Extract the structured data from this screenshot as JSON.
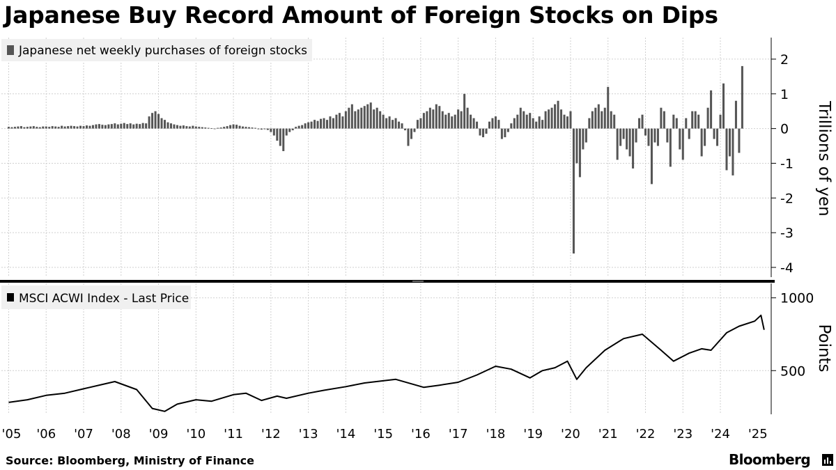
{
  "title": "Japanese Buy Record Amount of Foreign Stocks on Dips",
  "source": "Source: Bloomberg, Ministry of Finance",
  "brand": "Bloomberg",
  "chart_data": [
    {
      "type": "bar",
      "legend": "Japanese net weekly purchases of foreign stocks",
      "ylabel": "Trillions of yen",
      "ylim": [
        -4.2,
        2.5
      ],
      "yticks": [
        "2",
        "1",
        "0",
        "-1",
        "-2",
        "-3",
        "-4"
      ],
      "color": "#555555",
      "x_range": [
        "2004-12",
        "2025-03"
      ],
      "notable_points": [
        {
          "date": "2020-03",
          "value": -3.6
        },
        {
          "date": "2025-03",
          "value": 1.8
        },
        {
          "date": "2021-01",
          "value": 1.2
        },
        {
          "date": "2024-08",
          "value": 1.3
        },
        {
          "date": "2022-07",
          "value": -1.6
        },
        {
          "date": "2024-10",
          "value": -1.35
        }
      ],
      "monthly_net_purchases": [
        0.05,
        0.04,
        0.05,
        0.06,
        0.07,
        0.04,
        0.05,
        0.06,
        0.07,
        0.05,
        0.04,
        0.06,
        0.06,
        0.05,
        0.07,
        0.06,
        0.05,
        0.08,
        0.06,
        0.07,
        0.08,
        0.07,
        0.06,
        0.08,
        0.07,
        0.09,
        0.08,
        0.1,
        0.12,
        0.13,
        0.11,
        0.1,
        0.12,
        0.13,
        0.15,
        0.12,
        0.14,
        0.16,
        0.13,
        0.15,
        0.12,
        0.14,
        0.13,
        0.16,
        0.15,
        0.35,
        0.45,
        0.5,
        0.42,
        0.3,
        0.25,
        0.18,
        0.15,
        0.12,
        0.1,
        0.08,
        0.09,
        0.07,
        0.06,
        0.08,
        0.06,
        0.05,
        0.04,
        0.03,
        0.02,
        0.01,
        -0.01,
        0.02,
        0.03,
        0.05,
        0.07,
        0.1,
        0.12,
        0.11,
        0.08,
        0.06,
        0.05,
        0.04,
        0.03,
        0.02,
        -0.02,
        -0.03,
        -0.02,
        -0.04,
        -0.1,
        -0.2,
        -0.35,
        -0.5,
        -0.65,
        -0.2,
        -0.1,
        -0.05,
        0.05,
        0.08,
        0.1,
        0.15,
        0.18,
        0.2,
        0.25,
        0.22,
        0.28,
        0.3,
        0.25,
        0.35,
        0.3,
        0.4,
        0.45,
        0.35,
        0.5,
        0.6,
        0.7,
        0.5,
        0.55,
        0.6,
        0.65,
        0.7,
        0.75,
        0.55,
        0.6,
        0.5,
        0.4,
        0.3,
        0.35,
        0.25,
        0.3,
        0.2,
        0.15,
        -0.05,
        -0.5,
        -0.3,
        -0.1,
        0.25,
        0.3,
        0.45,
        0.5,
        0.6,
        0.55,
        0.7,
        0.65,
        0.5,
        0.4,
        0.45,
        0.35,
        0.4,
        0.55,
        0.5,
        1.0,
        0.6,
        0.4,
        0.3,
        0.2,
        -0.2,
        -0.25,
        -0.15,
        0.2,
        0.3,
        0.35,
        0.25,
        -0.3,
        -0.25,
        -0.1,
        0.15,
        0.3,
        0.4,
        0.6,
        0.5,
        0.4,
        0.45,
        0.3,
        0.2,
        0.35,
        0.25,
        0.5,
        0.55,
        0.6,
        0.7,
        0.8,
        0.55,
        0.4,
        0.35,
        0.5,
        -3.6,
        -1.0,
        -1.4,
        -0.6,
        -0.4,
        0.3,
        0.5,
        0.6,
        0.7,
        0.5,
        0.6,
        1.2,
        0.5,
        0.4,
        -0.9,
        -0.5,
        -0.3,
        -0.6,
        -0.8,
        -1.15,
        -0.4,
        0.3,
        0.4,
        -0.2,
        -0.5,
        -1.6,
        -0.4,
        -0.5,
        0.6,
        0.5,
        -0.4,
        -1.1,
        0.4,
        0.3,
        -0.6,
        -0.9,
        0.3,
        -0.3,
        0.5,
        0.5,
        0.4,
        -0.8,
        -0.5,
        0.6,
        1.1,
        -0.3,
        -0.5,
        0.4,
        1.3,
        -1.2,
        -0.8,
        -1.35,
        0.8,
        -0.7,
        1.8
      ]
    },
    {
      "type": "line",
      "legend": "MSCI ACWI Index - Last Price",
      "ylabel": "Points",
      "ylim": [
        200,
        1080
      ],
      "yticks": [
        "1000",
        "500"
      ],
      "color": "#000000",
      "x": [
        "2005-01",
        "2005-07",
        "2006-01",
        "2006-07",
        "2007-01",
        "2007-07",
        "2007-11",
        "2008-06",
        "2008-11",
        "2009-03",
        "2009-07",
        "2010-01",
        "2010-06",
        "2011-01",
        "2011-05",
        "2011-10",
        "2012-03",
        "2012-06",
        "2013-01",
        "2013-06",
        "2014-01",
        "2014-07",
        "2015-05",
        "2016-02",
        "2016-07",
        "2017-01",
        "2017-07",
        "2018-01",
        "2018-06",
        "2018-12",
        "2019-04",
        "2019-08",
        "2019-12",
        "2020-03",
        "2020-06",
        "2020-12",
        "2021-06",
        "2021-12",
        "2022-06",
        "2022-10",
        "2023-03",
        "2023-07",
        "2023-10",
        "2024-03",
        "2024-07",
        "2024-12",
        "2025-02",
        "2025-03"
      ],
      "y": [
        282,
        300,
        330,
        345,
        375,
        405,
        425,
        370,
        240,
        220,
        270,
        300,
        290,
        335,
        345,
        295,
        325,
        310,
        345,
        365,
        390,
        415,
        440,
        385,
        400,
        420,
        470,
        530,
        510,
        450,
        500,
        520,
        565,
        440,
        520,
        640,
        720,
        750,
        640,
        565,
        620,
        650,
        640,
        760,
        805,
        840,
        880,
        780
      ]
    }
  ],
  "x_axis_labels": [
    "'05",
    "'06",
    "'07",
    "'08",
    "'09",
    "'10",
    "'11",
    "'12",
    "'13",
    "'14",
    "'15",
    "'16",
    "'17",
    "'18",
    "'19",
    "'20",
    "'21",
    "'22",
    "'23",
    "'24",
    "'25"
  ]
}
